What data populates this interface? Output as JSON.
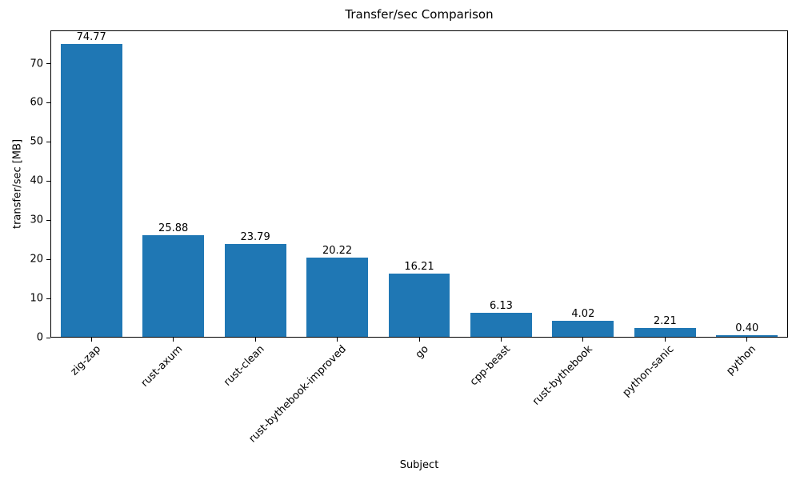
{
  "chart_data": {
    "type": "bar",
    "title": "Transfer/sec Comparison",
    "xlabel": "Subject",
    "ylabel": "transfer/sec [MB]",
    "categories": [
      "zig-zap",
      "rust-axum",
      "rust-clean",
      "rust-bythebook-improved",
      "go",
      "cpp-beast",
      "rust-bythebook",
      "python-sanic",
      "python"
    ],
    "values": [
      74.77,
      25.88,
      23.79,
      20.22,
      16.21,
      6.13,
      4.02,
      2.21,
      0.4
    ],
    "value_labels": [
      "74.77",
      "25.88",
      "23.79",
      "20.22",
      "16.21",
      "6.13",
      "4.02",
      "2.21",
      "0.40"
    ],
    "yticks": [
      0,
      10,
      20,
      30,
      40,
      50,
      60,
      70
    ],
    "ylim": [
      0,
      78.5
    ],
    "bar_color": "#1f77b4",
    "axis_color": "#000000",
    "grid": false,
    "legend_position": "none"
  }
}
